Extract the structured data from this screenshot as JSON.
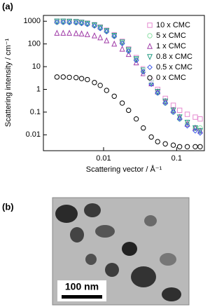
{
  "panels": [
    "(a)",
    "(b)"
  ],
  "chart_data": {
    "type": "scatter",
    "x_label": "Scattering vector / Å⁻¹",
    "y_label": "Scattering intensity / cm⁻¹",
    "log_x": true,
    "log_y": true,
    "legend": "upper right",
    "xlim": [
      0.0015,
      0.24
    ],
    "ylim": [
      0.002,
      1800
    ],
    "xticks": [
      0.01,
      0.1
    ],
    "yticks": [
      0.01,
      0.1,
      1,
      10,
      100,
      1000
    ],
    "x": [
      0.0023,
      0.0028,
      0.0034,
      0.0042,
      0.005,
      0.006,
      0.0075,
      0.009,
      0.011,
      0.014,
      0.018,
      0.022,
      0.028,
      0.035,
      0.045,
      0.055,
      0.07,
      0.09,
      0.11,
      0.14,
      0.18,
      0.21
    ],
    "series": [
      {
        "name": "10 x CMC",
        "color": "#e58ad0",
        "marker": "square",
        "values": [
          1000,
          1000,
          990,
          970,
          900,
          820,
          700,
          550,
          400,
          250,
          130,
          60,
          25,
          8,
          2.5,
          1,
          0.4,
          0.2,
          0.12,
          0.08,
          0.06,
          0.05
        ]
      },
      {
        "name": "5 x CMC",
        "color": "#8fe0a8",
        "marker": "circle",
        "values": [
          900,
          900,
          890,
          870,
          820,
          750,
          640,
          500,
          360,
          220,
          110,
          50,
          20,
          6,
          1.8,
          0.7,
          0.25,
          0.1,
          0.05,
          0.03,
          0.02,
          0.02
        ]
      },
      {
        "name": "1 x CMC",
        "color": "#a03ca8",
        "marker": "triangle",
        "values": [
          300,
          300,
          300,
          290,
          280,
          260,
          230,
          190,
          140,
          100,
          60,
          35,
          15,
          5,
          1.8,
          0.8,
          0.3,
          0.12,
          0.06,
          0.03,
          0.02,
          0.015
        ]
      },
      {
        "name": "0.8 x CMC",
        "color": "#1f9a80",
        "marker": "triangle-down",
        "values": [
          1000,
          1000,
          980,
          950,
          880,
          800,
          680,
          530,
          380,
          235,
          120,
          55,
          22,
          7,
          2,
          0.8,
          0.3,
          0.12,
          0.06,
          0.035,
          0.02,
          0.015
        ]
      },
      {
        "name": "0.5 x CMC",
        "color": "#3a55e6",
        "marker": "diamond",
        "values": [
          900,
          900,
          880,
          860,
          800,
          730,
          620,
          480,
          350,
          215,
          105,
          48,
          19,
          6,
          1.7,
          0.7,
          0.25,
          0.1,
          0.05,
          0.025,
          0.015,
          0.012
        ]
      },
      {
        "name": "0 x CMC",
        "color": "#000000",
        "marker": "circle",
        "values": [
          3.5,
          3.5,
          3.4,
          3.3,
          3,
          2.7,
          2,
          1.5,
          0.9,
          0.5,
          0.25,
          0.12,
          0.05,
          0.02,
          0.008,
          0.005,
          0.004,
          0.0035,
          0.003,
          0.003,
          0.003,
          0.003
        ]
      }
    ]
  },
  "image": {
    "scale_bar": "100 nm"
  }
}
